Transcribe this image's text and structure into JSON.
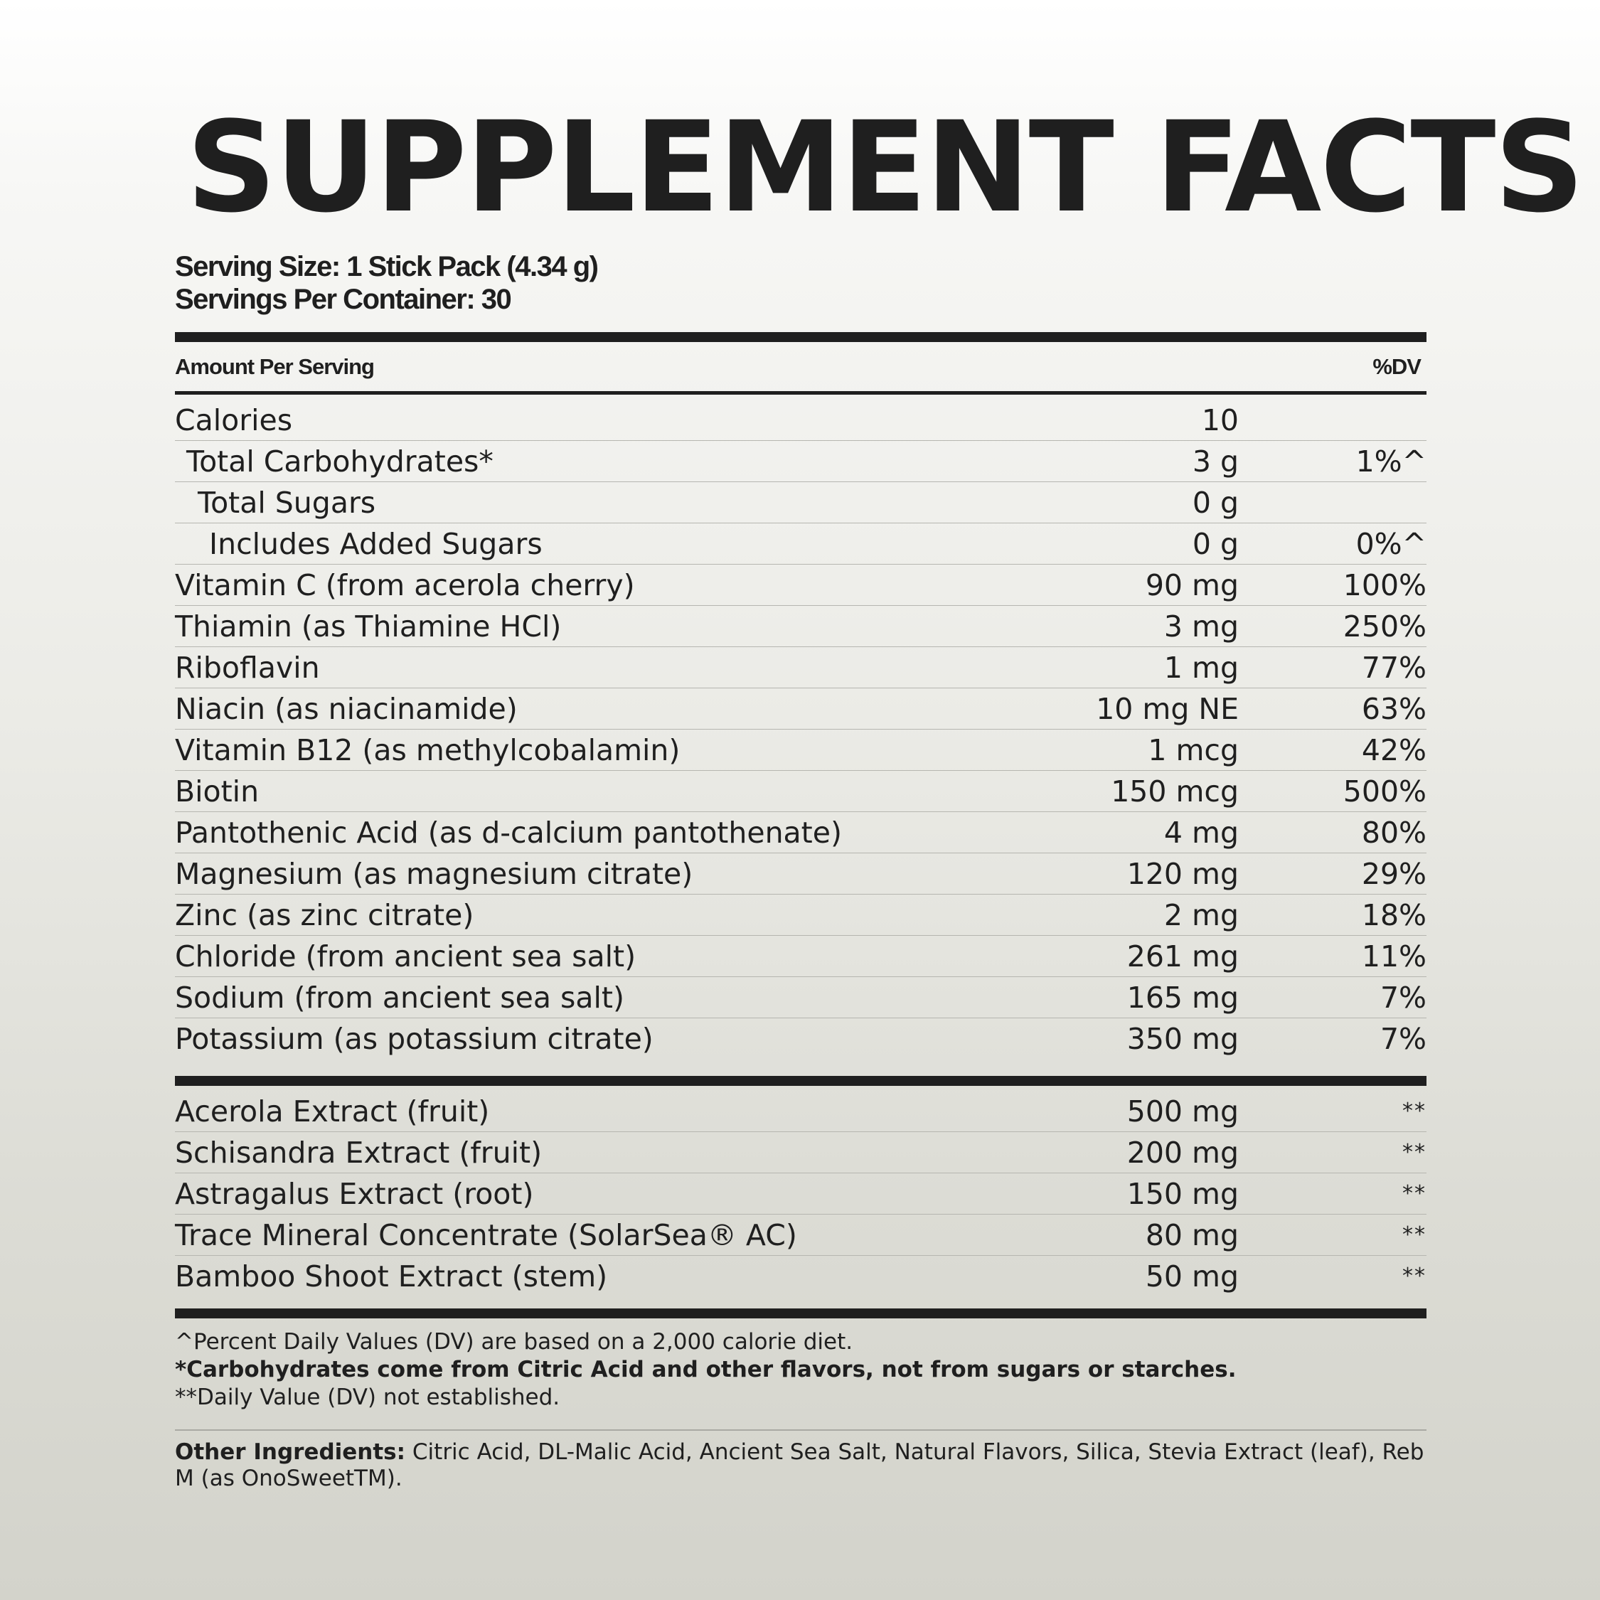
{
  "title": "SUPPLEMENT FACTS",
  "serving_size": "Serving Size: 1 Stick Pack (4.34 g)",
  "servings_per_container": "Servings Per Container: 30",
  "header": {
    "amount_label": "Amount Per Serving",
    "dv_label": "%DV"
  },
  "nutrients": [
    {
      "name": "Calories",
      "amount": "10",
      "dv": "",
      "indent": 0
    },
    {
      "name": "Total Carbohydrates*",
      "amount": "3 g",
      "dv": "1%^",
      "indent": 1
    },
    {
      "name": "Total Sugars",
      "amount": "0 g",
      "dv": "",
      "indent": 2
    },
    {
      "name": "Includes Added Sugars",
      "amount": "0 g",
      "dv": "0%^",
      "indent": 3
    },
    {
      "name": "Vitamin C (from acerola cherry)",
      "amount": "90 mg",
      "dv": "100%",
      "indent": 0
    },
    {
      "name": "Thiamin (as Thiamine HCl)",
      "amount": "3 mg",
      "dv": "250%",
      "indent": 0
    },
    {
      "name": "Riboflavin",
      "amount": "1 mg",
      "dv": "77%",
      "indent": 0
    },
    {
      "name": "Niacin (as niacinamide)",
      "amount": "10 mg NE",
      "dv": "63%",
      "indent": 0
    },
    {
      "name": "Vitamin B12 (as methylcobalamin)",
      "amount": "1 mcg",
      "dv": "42%",
      "indent": 0
    },
    {
      "name": "Biotin",
      "amount": "150 mcg",
      "dv": "500%",
      "indent": 0
    },
    {
      "name": "Pantothenic Acid (as d-calcium pantothenate)",
      "amount": "4 mg",
      "dv": "80%",
      "indent": 0
    },
    {
      "name": "Magnesium (as magnesium citrate)",
      "amount": "120 mg",
      "dv": "29%",
      "indent": 0
    },
    {
      "name": "Zinc (as zinc citrate)",
      "amount": "2 mg",
      "dv": "18%",
      "indent": 0
    },
    {
      "name": "Chloride (from ancient sea salt)",
      "amount": "261 mg",
      "dv": "11%",
      "indent": 0
    },
    {
      "name": "Sodium (from ancient sea salt)",
      "amount": "165 mg",
      "dv": "7%",
      "indent": 0
    },
    {
      "name": "Potassium (as potassium citrate)",
      "amount": "350 mg",
      "dv": "7%",
      "indent": 0
    }
  ],
  "extracts": [
    {
      "name": "Acerola Extract (fruit)",
      "amount": "500 mg",
      "dv": "**"
    },
    {
      "name": "Schisandra Extract (fruit)",
      "amount": "200 mg",
      "dv": "**"
    },
    {
      "name": "Astragalus Extract (root)",
      "amount": "150 mg",
      "dv": "**"
    },
    {
      "name": "Trace Mineral Concentrate (SolarSea® AC)",
      "amount": "80 mg",
      "dv": "**"
    },
    {
      "name": "Bamboo Shoot Extract (stem)",
      "amount": "50 mg",
      "dv": "**"
    }
  ],
  "footnotes": {
    "dv_note": "^Percent Daily Values (DV) are based on a 2,000 calorie diet.",
    "carb_note": "*Carbohydrates come from Citric Acid and other flavors, not from sugars or starches.",
    "not_established": "**Daily Value (DV) not established."
  },
  "other_ingredients": {
    "label": "Other Ingredients:",
    "text": " Citric Acid, DL-Malic Acid, Ancient Sea Salt, Natural Flavors, Silica, Stevia Extract (leaf), Reb M (as OnoSweetTM)."
  }
}
